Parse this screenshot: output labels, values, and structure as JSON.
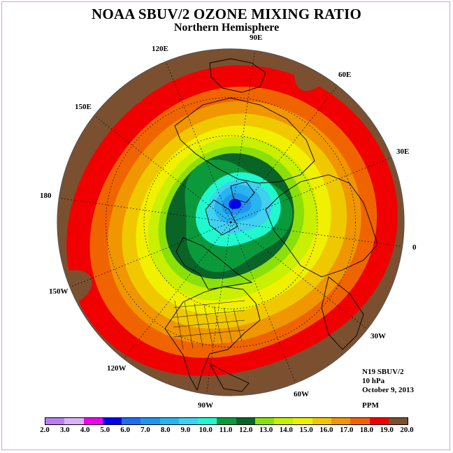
{
  "title": "NOAA SBUV/2 OZONE MIXING RATIO",
  "subtitle": "Northern Hemisphere",
  "info": {
    "satellite": "N19 SBUV/2",
    "level": "10 hPa",
    "date": "October 9, 2013",
    "units": "PPM"
  },
  "longitude_labels": [
    {
      "text": "90E",
      "lon": 90
    },
    {
      "text": "60E",
      "lon": 60
    },
    {
      "text": "30E",
      "lon": 30
    },
    {
      "text": "0",
      "lon": 0
    },
    {
      "text": "30W",
      "lon": -30
    },
    {
      "text": "60W",
      "lon": -60
    },
    {
      "text": "90W",
      "lon": -90
    },
    {
      "text": "120W",
      "lon": -120
    },
    {
      "text": "150W",
      "lon": -150
    },
    {
      "text": "180",
      "lon": 180
    },
    {
      "text": "150E",
      "lon": 150
    },
    {
      "text": "120E",
      "lon": 120
    }
  ],
  "colorbar": {
    "ticks": [
      "2.0",
      "3.0",
      "4.0",
      "5.0",
      "6.0",
      "7.0",
      "8.0",
      "9.0",
      "10.0",
      "11.0",
      "12.0",
      "13.0",
      "14.0",
      "15.0",
      "16.0",
      "17.0",
      "18.0",
      "19.0",
      "20.0"
    ],
    "colors": [
      "#b87ef0",
      "#dcb2f4",
      "#f000f0",
      "#0000f0",
      "#1e6ef0",
      "#1e96f0",
      "#28b4f0",
      "#40d0f0",
      "#20f8d0",
      "#0a9a3c",
      "#0a6428",
      "#8ce00a",
      "#c8f000",
      "#f0f000",
      "#f0c800",
      "#f09600",
      "#f06400",
      "#f00000",
      "#7a5030"
    ]
  },
  "map_data": {
    "center": {
      "lat": 90,
      "lon": 0
    },
    "bounding_lat": 0,
    "contour_levels_ppm": [
      2,
      3,
      4,
      5,
      6,
      7,
      8,
      9,
      10,
      11,
      12,
      13,
      14,
      15,
      16,
      17,
      18,
      19,
      20
    ],
    "vortex_minimum_ppm": 5.5,
    "equatorial_maximum_ppm": 19.5
  }
}
